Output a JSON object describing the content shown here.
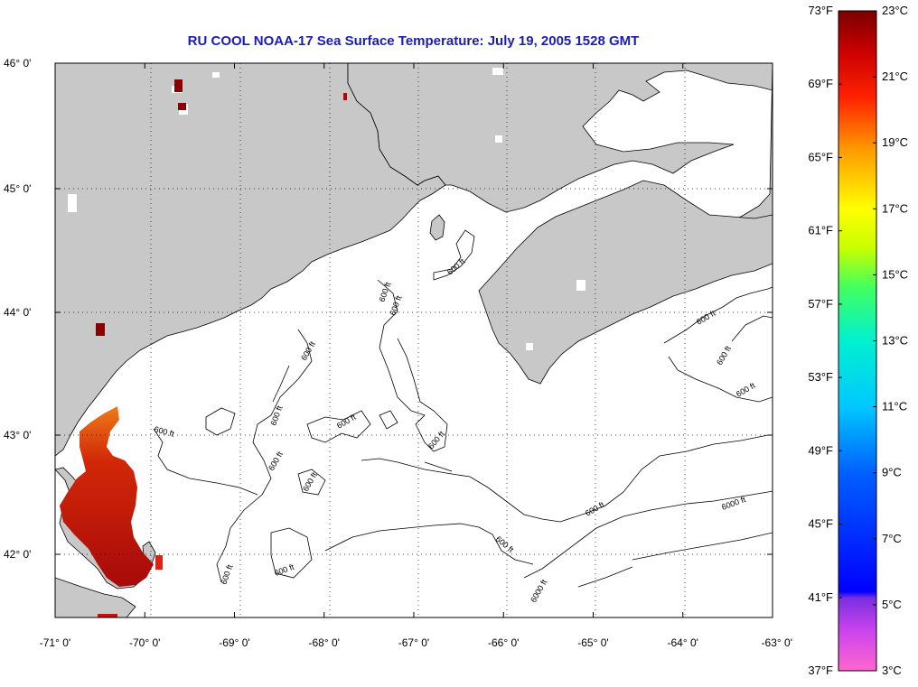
{
  "title": "RU COOL  NOAA-17  Sea Surface Temperature:  July 19, 2005 1528 GMT",
  "map": {
    "lon_range": [
      -71,
      -63
    ],
    "lat_range": [
      41.5,
      46.1
    ],
    "lat_ticks": [
      {
        "value": 46,
        "label": "46° 0'"
      },
      {
        "value": 45,
        "label": "45° 0'"
      },
      {
        "value": 44,
        "label": "44° 0'"
      },
      {
        "value": 43,
        "label": "43° 0'"
      },
      {
        "value": 42,
        "label": "42° 0'"
      }
    ],
    "lon_ticks": [
      {
        "value": -71,
        "label": "-71° 0'"
      },
      {
        "value": -70,
        "label": "-70° 0'"
      },
      {
        "value": -69,
        "label": "-69° 0'"
      },
      {
        "value": -68,
        "label": "-68° 0'"
      },
      {
        "value": -67,
        "label": "-67° 0'"
      },
      {
        "value": -66,
        "label": "-66° 0'"
      },
      {
        "value": -65,
        "label": "-65° 0'"
      },
      {
        "value": -64,
        "label": "-64° 0'"
      },
      {
        "value": -63,
        "label": "-63° 0'"
      }
    ],
    "contour_label": "600 ft",
    "contour_label_deep": "6000 ft",
    "land_color": "#c8c8c8",
    "water_color": "#ffffff",
    "grid": true
  },
  "colorbar": {
    "f_labels": [
      "73°F",
      "69°F",
      "65°F",
      "61°F",
      "57°F",
      "53°F",
      "49°F",
      "45°F",
      "41°F",
      "37°F"
    ],
    "c_labels": [
      "23°C",
      "21°C",
      "19°C",
      "17°C",
      "15°C",
      "13°C",
      "11°C",
      "9°C",
      "7°C",
      "5°C",
      "3°C"
    ],
    "f_range": [
      37,
      73
    ],
    "c_range": [
      3,
      23
    ]
  }
}
